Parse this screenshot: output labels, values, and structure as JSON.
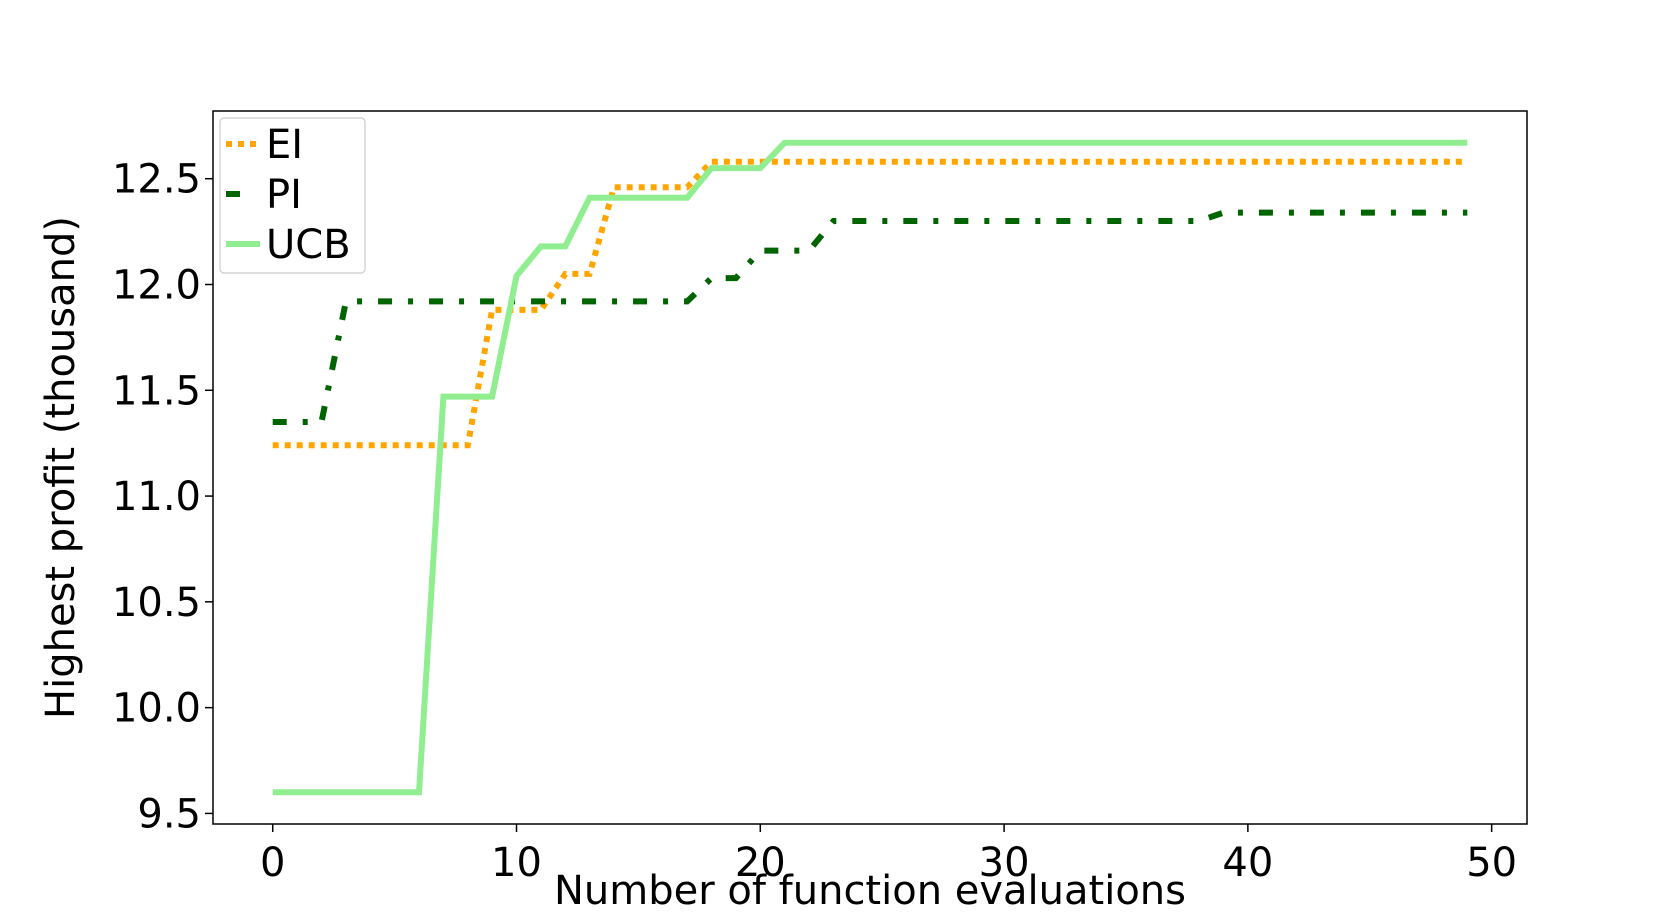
{
  "chart_data": {
    "type": "line",
    "title": "",
    "xlabel": "Number of function evaluations",
    "ylabel": "Highest profit (thousand)",
    "xlim": [
      -2.45,
      51.45
    ],
    "ylim": [
      9.45,
      12.82
    ],
    "xticks": [
      0,
      10,
      20,
      30,
      40,
      50
    ],
    "xtick_labels": [
      "0",
      "10",
      "20",
      "30",
      "40",
      "50"
    ],
    "yticks": [
      9.5,
      10.0,
      10.5,
      11.0,
      11.5,
      12.0,
      12.5
    ],
    "ytick_labels": [
      "9.5",
      "10.0",
      "10.5",
      "11.0",
      "11.5",
      "12.0",
      "12.5"
    ],
    "grid": false,
    "legend_position": "top-left",
    "series": [
      {
        "name": "EI",
        "color": "#ffa500",
        "style": "dotted",
        "x": [
          0,
          1,
          2,
          3,
          4,
          5,
          6,
          7,
          8,
          9,
          10,
          11,
          12,
          13,
          14,
          15,
          16,
          17,
          18,
          19,
          20,
          21,
          22,
          23,
          24,
          25,
          26,
          27,
          28,
          29,
          30,
          31,
          32,
          33,
          34,
          35,
          36,
          37,
          38,
          39,
          40,
          41,
          42,
          43,
          44,
          45,
          46,
          47,
          48,
          49
        ],
        "values": [
          11.24,
          11.24,
          11.24,
          11.24,
          11.24,
          11.24,
          11.24,
          11.24,
          11.24,
          11.88,
          11.88,
          11.88,
          12.05,
          12.05,
          12.46,
          12.46,
          12.46,
          12.46,
          12.58,
          12.58,
          12.58,
          12.58,
          12.58,
          12.58,
          12.58,
          12.58,
          12.58,
          12.58,
          12.58,
          12.58,
          12.58,
          12.58,
          12.58,
          12.58,
          12.58,
          12.58,
          12.58,
          12.58,
          12.58,
          12.58,
          12.58,
          12.58,
          12.58,
          12.58,
          12.58,
          12.58,
          12.58,
          12.58,
          12.58,
          12.58
        ]
      },
      {
        "name": "PI",
        "color": "#006400",
        "style": "dashdot",
        "x": [
          0,
          1,
          2,
          3,
          4,
          5,
          6,
          7,
          8,
          9,
          10,
          11,
          12,
          13,
          14,
          15,
          16,
          17,
          18,
          19,
          20,
          21,
          22,
          23,
          24,
          25,
          26,
          27,
          28,
          29,
          30,
          31,
          32,
          33,
          34,
          35,
          36,
          37,
          38,
          39,
          40,
          41,
          42,
          43,
          44,
          45,
          46,
          47,
          48,
          49
        ],
        "values": [
          11.35,
          11.35,
          11.35,
          11.92,
          11.92,
          11.92,
          11.92,
          11.92,
          11.92,
          11.92,
          11.92,
          11.92,
          11.92,
          11.92,
          11.92,
          11.92,
          11.92,
          11.92,
          12.03,
          12.03,
          12.16,
          12.16,
          12.16,
          12.3,
          12.3,
          12.3,
          12.3,
          12.3,
          12.3,
          12.3,
          12.3,
          12.3,
          12.3,
          12.3,
          12.3,
          12.3,
          12.3,
          12.3,
          12.3,
          12.34,
          12.34,
          12.34,
          12.34,
          12.34,
          12.34,
          12.34,
          12.34,
          12.34,
          12.34,
          12.34
        ]
      },
      {
        "name": "UCB",
        "color": "#90ee90",
        "style": "solid",
        "x": [
          0,
          1,
          2,
          3,
          4,
          5,
          6,
          7,
          8,
          9,
          10,
          11,
          12,
          13,
          14,
          15,
          16,
          17,
          18,
          19,
          20,
          21,
          22,
          23,
          24,
          25,
          26,
          27,
          28,
          29,
          30,
          31,
          32,
          33,
          34,
          35,
          36,
          37,
          38,
          39,
          40,
          41,
          42,
          43,
          44,
          45,
          46,
          47,
          48,
          49
        ],
        "values": [
          9.6,
          9.6,
          9.6,
          9.6,
          9.6,
          9.6,
          9.6,
          11.47,
          11.47,
          11.47,
          12.04,
          12.18,
          12.18,
          12.41,
          12.41,
          12.41,
          12.41,
          12.41,
          12.55,
          12.55,
          12.55,
          12.67,
          12.67,
          12.67,
          12.67,
          12.67,
          12.67,
          12.67,
          12.67,
          12.67,
          12.67,
          12.67,
          12.67,
          12.67,
          12.67,
          12.67,
          12.67,
          12.67,
          12.67,
          12.67,
          12.67,
          12.67,
          12.67,
          12.67,
          12.67,
          12.67,
          12.67,
          12.67,
          12.67,
          12.67
        ]
      }
    ]
  }
}
